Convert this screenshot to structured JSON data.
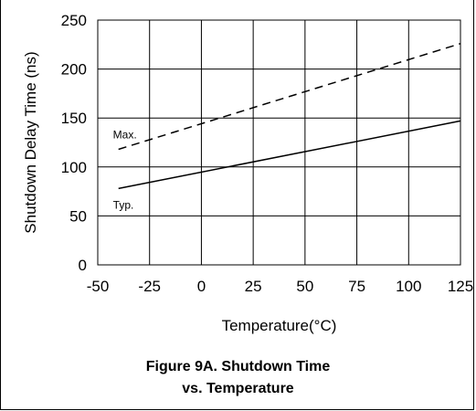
{
  "chart_data": {
    "type": "line",
    "xlabel": "Temperature(°C)",
    "ylabel": "Shutdown Delay Time (ns)",
    "xlim": [
      -50,
      125
    ],
    "ylim": [
      0,
      250
    ],
    "x_ticks": [
      "-50",
      "-25",
      "0",
      "25",
      "50",
      "75",
      "100",
      "125"
    ],
    "y_ticks": [
      "0",
      "50",
      "100",
      "150",
      "200",
      "250"
    ],
    "grid": true,
    "series": [
      {
        "name": "Max.",
        "style": "dashed",
        "x": [
          -40,
          125
        ],
        "y": [
          118,
          226
        ]
      },
      {
        "name": "Typ.",
        "style": "solid",
        "x": [
          -40,
          125
        ],
        "y": [
          78,
          147
        ]
      }
    ]
  },
  "caption": {
    "line1": "Figure 9A. Shutdown Time",
    "line2": "vs. Temperature"
  }
}
